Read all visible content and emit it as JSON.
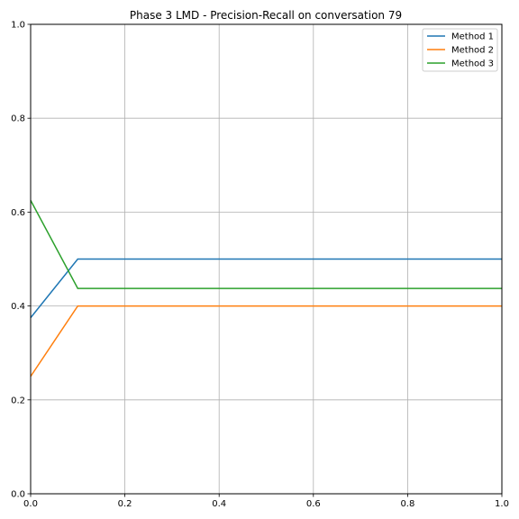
{
  "chart_data": {
    "type": "line",
    "title": "Phase 3 LMD - Precision-Recall on conversation 79",
    "xlabel": "",
    "ylabel": "",
    "xlim": [
      0,
      1
    ],
    "ylim": [
      0,
      1
    ],
    "xticks": [
      "0.0",
      "0.2",
      "0.4",
      "0.6",
      "0.8",
      "1.0"
    ],
    "yticks": [
      "0.0",
      "0.2",
      "0.4",
      "0.6",
      "0.8",
      "1.0"
    ],
    "grid": true,
    "legend_position": "top-right",
    "series": [
      {
        "name": "Method 1",
        "color": "#1f77b4",
        "x": [
          0.0,
          0.1,
          1.0
        ],
        "y": [
          0.375,
          0.5,
          0.5
        ]
      },
      {
        "name": "Method 2",
        "color": "#ff7f0e",
        "x": [
          0.0,
          0.1,
          1.0
        ],
        "y": [
          0.25,
          0.4,
          0.4
        ]
      },
      {
        "name": "Method 3",
        "color": "#2ca02c",
        "x": [
          0.0,
          0.1,
          1.0
        ],
        "y": [
          0.625,
          0.4375,
          0.4375
        ]
      }
    ]
  }
}
